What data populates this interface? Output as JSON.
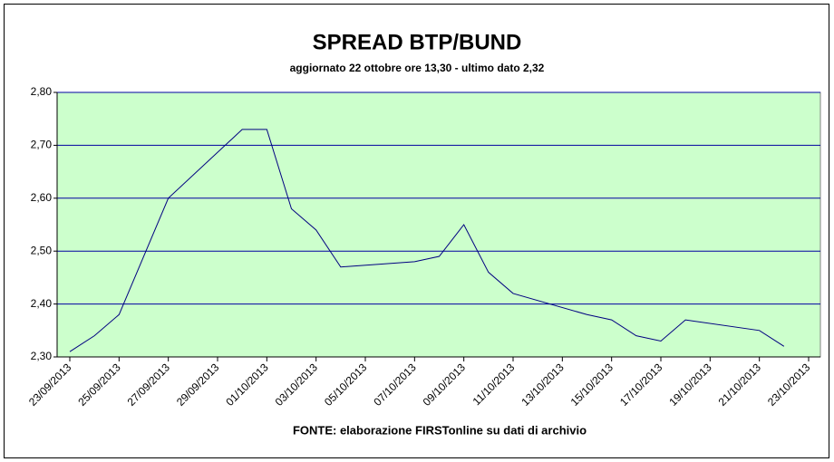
{
  "chart_data": {
    "type": "line",
    "title": "SPREAD BTP/BUND",
    "subtitle": "aggiornato 22 ottobre ore 13,30 - ultimo dato 2,32",
    "note": "FONTE: elaborazione FIRSTonline su dati di archivio",
    "x": [
      "23/09/2013",
      "24/09/2013",
      "25/09/2013",
      "26/09/2013",
      "27/09/2013",
      "30/09/2013",
      "01/10/2013",
      "02/10/2013",
      "03/10/2013",
      "04/10/2013",
      "07/10/2013",
      "08/10/2013",
      "09/10/2013",
      "10/10/2013",
      "11/10/2013",
      "14/10/2013",
      "15/10/2013",
      "16/10/2013",
      "17/10/2013",
      "18/10/2013",
      "21/10/2013",
      "22/10/2013"
    ],
    "series": [
      {
        "color": "#000080",
        "values": [
          2.31,
          2.34,
          2.38,
          2.49,
          2.6,
          2.73,
          2.73,
          2.58,
          2.54,
          2.47,
          2.48,
          2.49,
          2.55,
          2.46,
          2.42,
          2.38,
          2.37,
          2.34,
          2.33,
          2.37,
          2.35,
          2.32
        ]
      }
    ],
    "xlim": [
      "23/09/2013",
      "23/10/2013"
    ],
    "xticks": [
      "23/09/2013",
      "25/09/2013",
      "27/09/2013",
      "29/09/2013",
      "01/10/2013",
      "03/10/2013",
      "05/10/2013",
      "07/10/2013",
      "09/10/2013",
      "11/10/2013",
      "13/10/2013",
      "15/10/2013",
      "17/10/2013",
      "19/10/2013",
      "21/10/2013",
      "23/10/2013"
    ],
    "ylim": [
      2.3,
      2.8
    ],
    "yticks": [
      {
        "value": 2.3,
        "label": "2,30"
      },
      {
        "value": 2.4,
        "label": "2,40"
      },
      {
        "value": 2.5,
        "label": "2,50"
      },
      {
        "value": 2.6,
        "label": "2,60"
      },
      {
        "value": 2.7,
        "label": "2,70"
      },
      {
        "value": 2.8,
        "label": "2,80"
      }
    ],
    "grid": true,
    "plot_color": "#ccffcc",
    "grid_color": "#0000a0"
  }
}
